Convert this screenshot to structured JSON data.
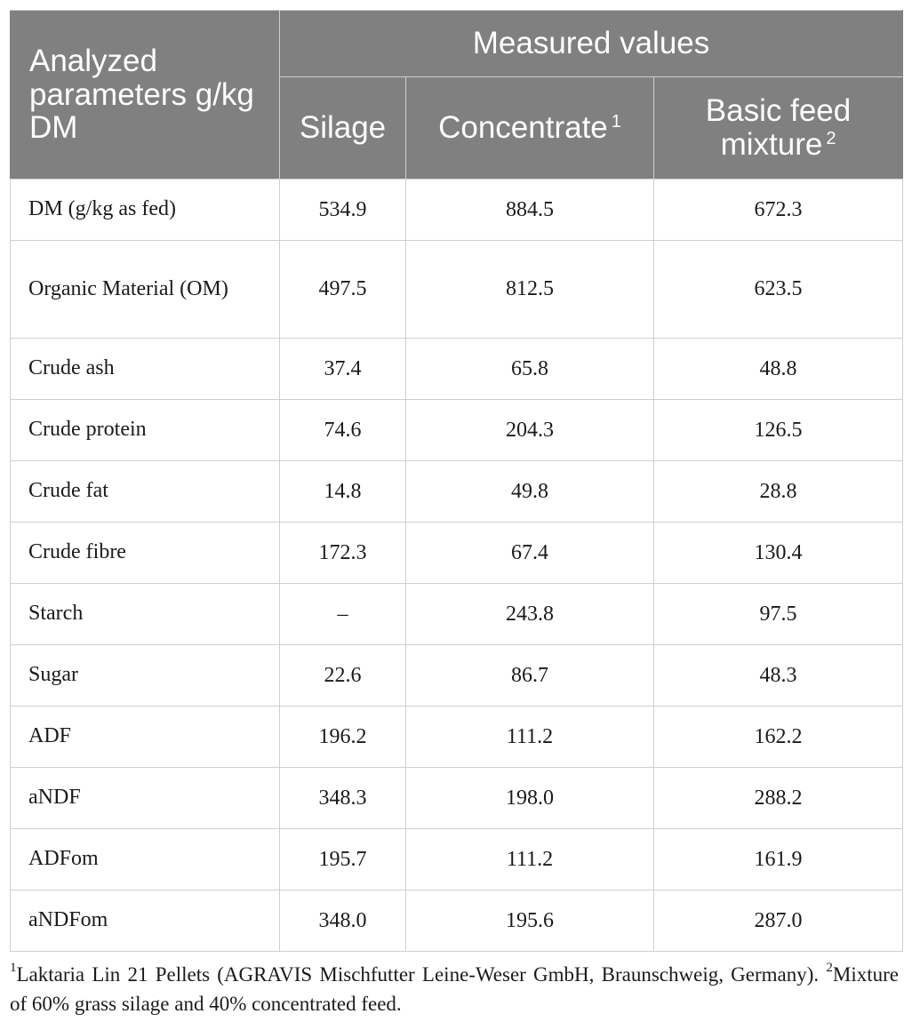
{
  "table": {
    "header": {
      "parameter_label": "Analyzed parameters g/kg DM",
      "group_label": "Measured values",
      "columns": [
        {
          "label": "Silage",
          "footnote_ref": ""
        },
        {
          "label": "Concentrate",
          "footnote_ref": "1"
        },
        {
          "label": "Basic feed mixture",
          "footnote_ref": "2"
        }
      ]
    },
    "rows": [
      {
        "label": "DM (g/kg as fed)",
        "silage": "534.9",
        "concentrate": "884.5",
        "mixture": "672.3"
      },
      {
        "label": "Organic Material (OM)",
        "silage": "497.5",
        "concentrate": "812.5",
        "mixture": "623.5"
      },
      {
        "label": "Crude ash",
        "silage": "37.4",
        "concentrate": "65.8",
        "mixture": "48.8"
      },
      {
        "label": "Crude protein",
        "silage": "74.6",
        "concentrate": "204.3",
        "mixture": "126.5"
      },
      {
        "label": "Crude fat",
        "silage": "14.8",
        "concentrate": "49.8",
        "mixture": "28.8"
      },
      {
        "label": "Crude fibre",
        "silage": "172.3",
        "concentrate": "67.4",
        "mixture": "130.4"
      },
      {
        "label": "Starch",
        "silage": "–",
        "concentrate": "243.8",
        "mixture": "97.5"
      },
      {
        "label": "Sugar",
        "silage": "22.6",
        "concentrate": "86.7",
        "mixture": "48.3"
      },
      {
        "label": "ADF",
        "silage": "196.2",
        "concentrate": "111.2",
        "mixture": "162.2"
      },
      {
        "label": "aNDF",
        "silage": "348.3",
        "concentrate": "198.0",
        "mixture": "288.2"
      },
      {
        "label": "ADFom",
        "silage": "195.7",
        "concentrate": "111.2",
        "mixture": "161.9"
      },
      {
        "label": "aNDFom",
        "silage": "348.0",
        "concentrate": "195.6",
        "mixture": "287.0"
      }
    ]
  },
  "footnotes": [
    {
      "marker": "1",
      "text": "Laktaria Lin 21 Pellets (AGRAVIS Mischfutter Leine-Weser GmbH, Braunschweig, Germany). "
    },
    {
      "marker": "2",
      "text": "Mixture of 60% grass silage and 40% concentrated feed."
    }
  ],
  "colors": {
    "header_background": "#808080",
    "header_text": "#ffffff",
    "grid_line": "#cfcfcf"
  }
}
